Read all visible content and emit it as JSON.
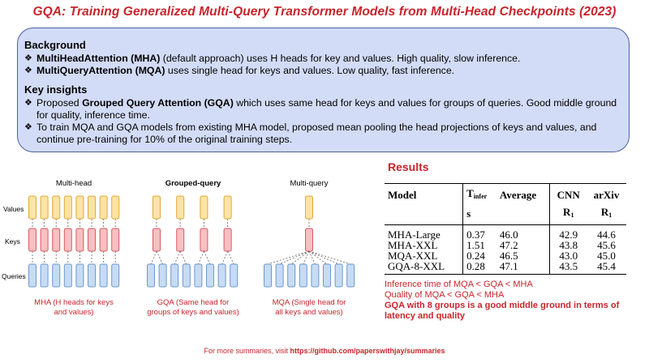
{
  "title": "GQA: Training Generalized Multi-Query Transformer Models from Multi-Head Checkpoints (2023)",
  "background": {
    "heading": "Background",
    "bullets": [
      {
        "bold": "MultiHeadAttention (MHA)",
        "text": " (default approach) uses H heads for key and values. High quality, slow inference."
      },
      {
        "bold": "MultiQueryAttention (MQA)",
        "text": " uses single head for keys and values. Low quality, fast inference."
      }
    ]
  },
  "insights": {
    "heading": "Key insights",
    "bullets": [
      {
        "pre": "Proposed ",
        "bold": "Grouped Query Attention (GQA)",
        "text": " which uses same head for keys and values for groups of queries. Good middle ground for quality, inference time."
      },
      {
        "pre": "",
        "bold": "",
        "text": "To train MQA and GQA models from existing MHA model, proposed mean pooling the head projections of keys and values, and continue pre-training for 10% of the original training steps."
      }
    ]
  },
  "diagram": {
    "row_labels": [
      "Values",
      "Keys",
      "Queries"
    ],
    "panels": [
      {
        "title": "Multi-head",
        "caption_lines": [
          "MHA (H heads for keys",
          "and values)"
        ]
      },
      {
        "title": "Grouped-query",
        "caption_lines": [
          "GQA (Same head for",
          "groups of keys and values)"
        ]
      },
      {
        "title": "Multi-query",
        "caption_lines": [
          "MQA (Single head for",
          "all keys and values)"
        ]
      }
    ],
    "colors": {
      "values_fill": "#fde4a6",
      "values_stroke": "#e0a838",
      "keys_fill": "#f8c0c2",
      "keys_stroke": "#d65a5f",
      "queries_fill": "#c7dcf3",
      "queries_stroke": "#6a98d0",
      "caption": "#c8242b"
    }
  },
  "results": {
    "heading": "Results",
    "header_row1": [
      "Model",
      "T",
      "Average",
      "CNN",
      "arXiv"
    ],
    "tinfer_sub": "infer",
    "header_row2": [
      "",
      "s",
      "",
      "R",
      "R"
    ],
    "r_sub": "1",
    "rows": [
      [
        "MHA-Large",
        "0.37",
        "46.0",
        "42.9",
        "44.6"
      ],
      [
        "MHA-XXL",
        "1.51",
        "47.2",
        "43.8",
        "45.6"
      ],
      [
        "MQA-XXL",
        "0.24",
        "46.5",
        "43.0",
        "45.0"
      ],
      [
        "GQA-8-XXL",
        "0.28",
        "47.1",
        "43.5",
        "45.4"
      ]
    ]
  },
  "notes": {
    "line1": "Inference time of MQA < GQA < MHA",
    "line2": "Quality of MQA < GQA < MHA",
    "line3": "GQA with 8 groups is a good middle ground in terms of latency and quality"
  },
  "footer": {
    "prefix": "For more summaries, visit ",
    "link": "https://github.com/paperswithjay/summaries"
  }
}
